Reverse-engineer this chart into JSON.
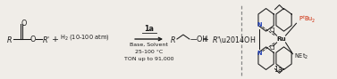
{
  "bg_color": "#f0ede8",
  "text_color": "#1a1a1a",
  "blue_color": "#1a3ab5",
  "red_color": "#cc2200",
  "grey_color": "#666666",
  "dashed_line_x": 0.718,
  "conditions_above": "1a",
  "conditions1": "Base, Solvent",
  "conditions2": "25-100 °C",
  "conditions3": "TON up to 91,000",
  "label_1a": "1a",
  "fs_base": 5.8,
  "fs_small": 4.8,
  "fs_ru": 5.2,
  "lw": 0.75
}
